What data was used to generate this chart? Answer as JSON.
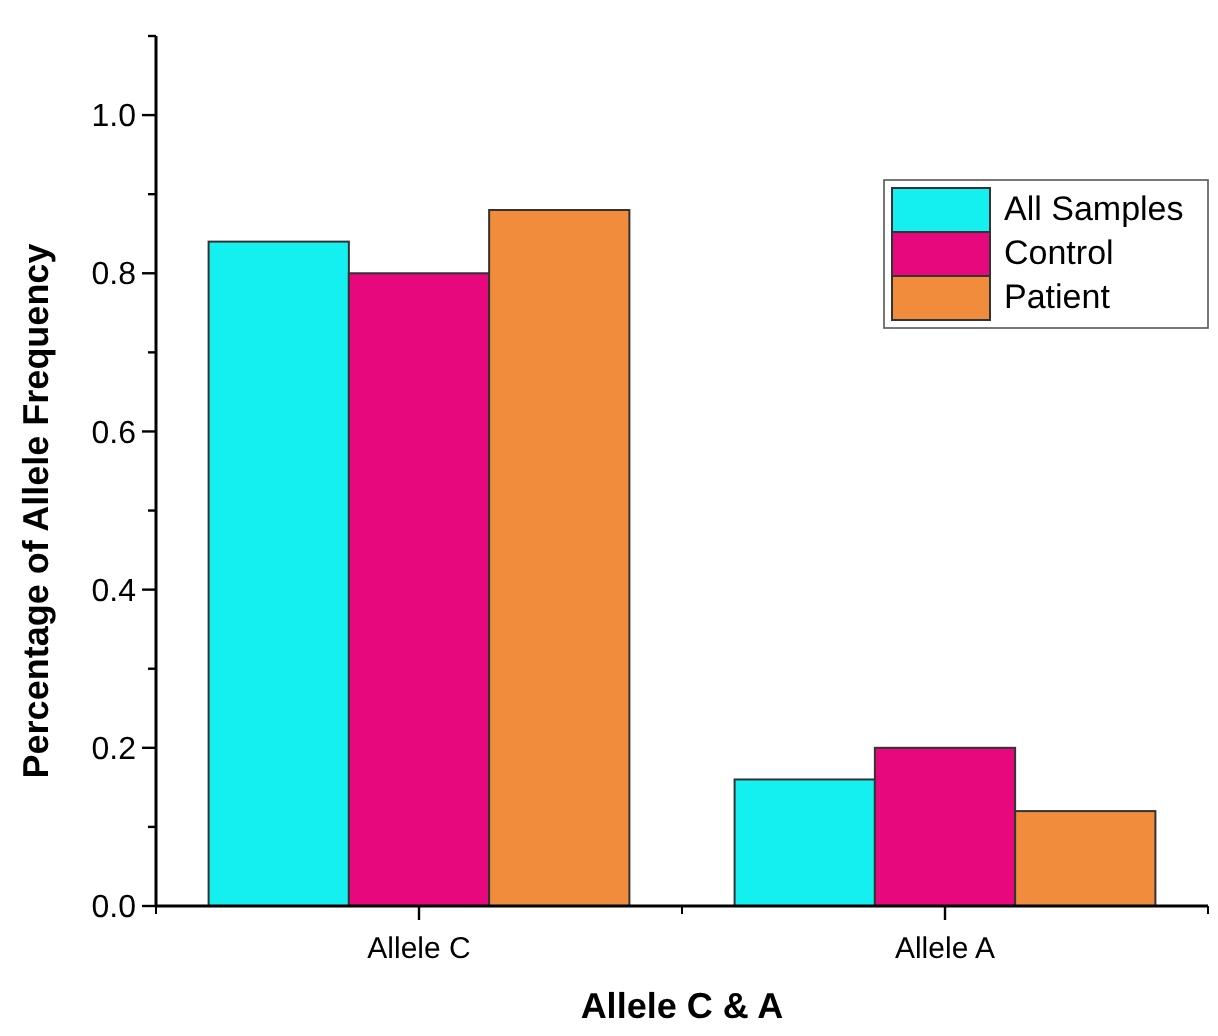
{
  "chart_data": {
    "type": "bar",
    "xlabel": "Allele C & A",
    "ylabel": "Percentage of Allele Frequency",
    "categories": [
      "Allele C",
      "Allele A"
    ],
    "series": [
      {
        "name": "All Samples",
        "color": "#14f0f0",
        "values": [
          0.84,
          0.16
        ]
      },
      {
        "name": "Control",
        "color": "#e6087c",
        "values": [
          0.8,
          0.2
        ]
      },
      {
        "name": "Patient",
        "color": "#f08c3c",
        "values": [
          0.88,
          0.12
        ]
      }
    ],
    "ylim": [
      0,
      1.1
    ],
    "yticks": [
      {
        "value": 0,
        "label": "0.0"
      },
      {
        "value": 0.1,
        "label": null
      },
      0.2,
      {
        "value": 0.3,
        "label": null
      },
      0.4,
      {
        "value": 0.5,
        "label": null
      },
      0.6,
      {
        "value": 0.7,
        "label": null
      },
      0.8,
      {
        "value": 0.9,
        "label": null
      },
      {
        "value": 1,
        "label": "1.0"
      },
      {
        "value": 1.1,
        "label": null
      }
    ],
    "legend": "top right",
    "grid": false
  }
}
